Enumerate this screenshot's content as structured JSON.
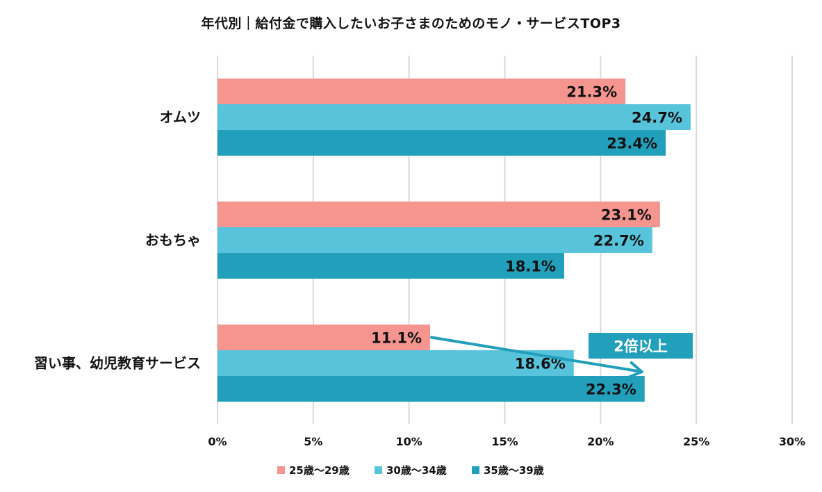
{
  "chart_data": {
    "type": "bar",
    "orientation": "horizontal",
    "title": "年代別｜給付金で購入したいお子さまのためのモノ・サービスTOP3",
    "categories": [
      "オムツ",
      "おもちゃ",
      "習い事、幼児教育サービス"
    ],
    "series": [
      {
        "name": "25歳〜29歳",
        "color": "#f4958f",
        "values": [
          21.3,
          23.1,
          11.1
        ]
      },
      {
        "name": "30歳〜34歳",
        "color": "#58c4dc",
        "values": [
          24.7,
          22.7,
          18.6
        ]
      },
      {
        "name": "35歳〜39歳",
        "color": "#229fbb",
        "values": [
          23.4,
          18.1,
          22.3
        ]
      }
    ],
    "value_suffix": "%",
    "xlim": [
      0,
      30
    ],
    "xticks": [
      0,
      5,
      10,
      15,
      20,
      25,
      30
    ],
    "tick_labels": [
      "0%",
      "5%",
      "10%",
      "15%",
      "20%",
      "25%",
      "30%"
    ],
    "grid": true,
    "legend_position": "bottom",
    "annotation": {
      "text": "2倍以上",
      "category": "習い事、幼児教育サービス",
      "from_series": "25歳〜29歳",
      "to_series": "35歳〜39歳",
      "color": "#229fbb"
    }
  }
}
